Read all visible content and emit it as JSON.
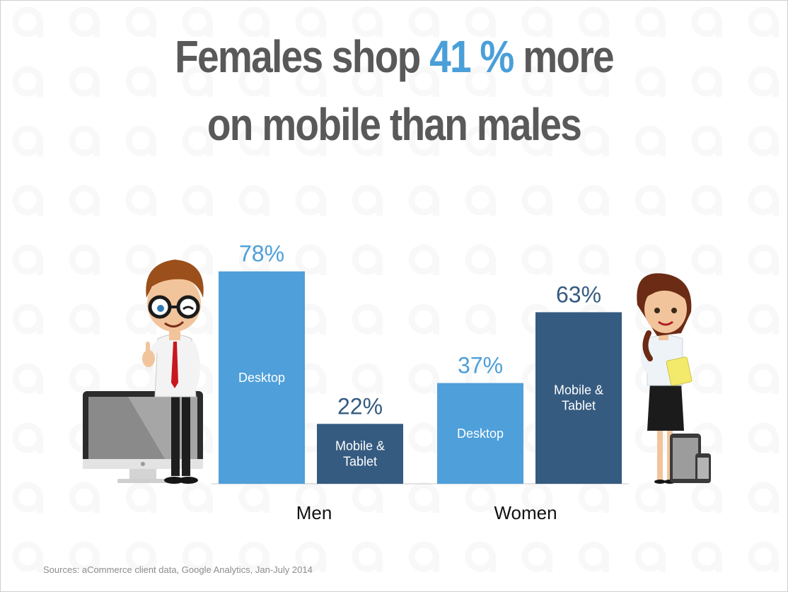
{
  "title": {
    "line1_before": "Females shop ",
    "line1_highlight": "41 %",
    "line1_after": " more",
    "line2": "on mobile than males"
  },
  "colors": {
    "desktop": "#4e9fda",
    "mobile": "#355b80",
    "desktop_label": "#4e9fda",
    "mobile_label": "#355b80",
    "title": "#595959",
    "accent": "#4a9fd8"
  },
  "chart_data": {
    "type": "bar",
    "title": "Females shop 41 % more on mobile than males",
    "categories": [
      "Men",
      "Women"
    ],
    "series": [
      {
        "name": "Desktop",
        "values": [
          78,
          37
        ]
      },
      {
        "name": "Mobile & Tablet",
        "values": [
          22,
          63
        ]
      }
    ],
    "value_labels": [
      [
        "78%",
        "22%"
      ],
      [
        "37%",
        "63%"
      ]
    ],
    "bar_labels": [
      "Desktop",
      "Mobile &\nTablet"
    ],
    "xlabel": "",
    "ylabel": "",
    "ylim": [
      0,
      100
    ],
    "grid": false,
    "legend": "none"
  },
  "illustrations": [
    "man-thumbs-up",
    "desktop-monitor",
    "woman-holding-tablet",
    "tablet-device",
    "smartphone-device"
  ],
  "source": "Sources: aCommerce client data, Google Analytics, Jan-July 2014"
}
